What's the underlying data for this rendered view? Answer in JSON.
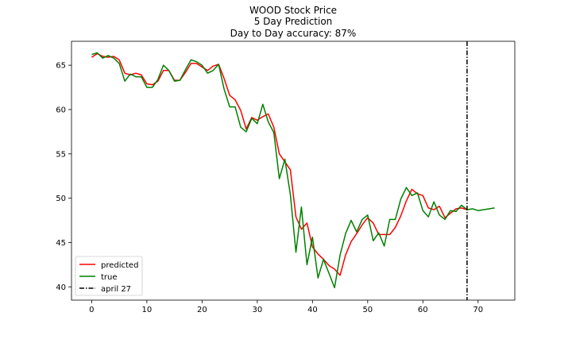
{
  "chart_data": {
    "type": "line",
    "title_lines": [
      "WOOD Stock Price",
      "5 Day Prediction",
      "Day to Day accuracy: 87%"
    ],
    "xlabel": "",
    "ylabel": "",
    "xlim": [
      -3.65,
      76.65
    ],
    "ylim": [
      38.5,
      67.7
    ],
    "xticks": [
      0,
      10,
      20,
      30,
      40,
      50,
      60,
      70
    ],
    "yticks": [
      40,
      45,
      50,
      55,
      60,
      65
    ],
    "grid": false,
    "legend_position": "lower-left",
    "series": [
      {
        "name": "predicted",
        "color": "#ff0000",
        "x": [
          0,
          1,
          2,
          3,
          4,
          5,
          6,
          7,
          8,
          9,
          10,
          11,
          12,
          13,
          14,
          15,
          16,
          17,
          18,
          19,
          20,
          21,
          22,
          23,
          24,
          25,
          26,
          27,
          28,
          29,
          30,
          31,
          32,
          33,
          34,
          35,
          36,
          37,
          38,
          39,
          40,
          41,
          42,
          43,
          44,
          45,
          46,
          47,
          48,
          49,
          50,
          51,
          52,
          53,
          54,
          55,
          56,
          57,
          58,
          59,
          60,
          61,
          62,
          63,
          64,
          65,
          66,
          67,
          68
        ],
        "y": [
          65.9,
          66.3,
          66.0,
          65.9,
          66.0,
          65.6,
          64.1,
          63.9,
          64.1,
          63.9,
          62.9,
          62.8,
          63.2,
          64.4,
          64.4,
          63.3,
          63.3,
          64.2,
          65.2,
          65.2,
          64.8,
          64.4,
          64.9,
          65.1,
          63.5,
          61.6,
          61.1,
          59.9,
          57.8,
          59.1,
          58.8,
          59.2,
          59.5,
          58.0,
          55.0,
          54.1,
          53.2,
          47.9,
          46.5,
          47.2,
          44.5,
          43.7,
          43.1,
          42.4,
          42.0,
          41.3,
          43.6,
          45.1,
          46.0,
          47.0,
          47.8,
          47.2,
          45.9,
          45.9,
          45.9,
          46.7,
          48.0,
          49.7,
          51.0,
          50.5,
          50.3,
          48.9,
          48.7,
          49.1,
          47.8,
          48.3,
          48.8,
          48.9,
          48.7
        ]
      },
      {
        "name": "true",
        "color": "#008000",
        "x": [
          0,
          1,
          2,
          3,
          4,
          5,
          6,
          7,
          8,
          9,
          10,
          11,
          12,
          13,
          14,
          15,
          16,
          17,
          18,
          19,
          20,
          21,
          22,
          23,
          24,
          25,
          26,
          27,
          28,
          29,
          30,
          31,
          32,
          33,
          34,
          35,
          36,
          37,
          38,
          39,
          40,
          41,
          42,
          43,
          44,
          45,
          46,
          47,
          48,
          49,
          50,
          51,
          52,
          53,
          54,
          55,
          56,
          57,
          58,
          59,
          60,
          61,
          62,
          63,
          64,
          65,
          66,
          67,
          68,
          69,
          70,
          71,
          72,
          73
        ],
        "y": [
          66.2,
          66.4,
          65.8,
          66.1,
          65.8,
          65.2,
          63.2,
          64.0,
          63.7,
          63.7,
          62.5,
          62.5,
          63.4,
          65.0,
          64.4,
          63.2,
          63.3,
          64.5,
          65.6,
          65.4,
          65.0,
          64.1,
          64.4,
          65.1,
          62.3,
          60.3,
          60.3,
          58.0,
          57.5,
          59.0,
          58.4,
          60.6,
          58.6,
          57.4,
          52.2,
          54.4,
          50.4,
          43.9,
          49.0,
          42.5,
          45.6,
          41.0,
          43.1,
          41.5,
          39.9,
          43.6,
          46.0,
          47.5,
          46.2,
          47.6,
          48.1,
          45.2,
          46.1,
          44.6,
          47.6,
          47.6,
          49.9,
          51.2,
          50.3,
          50.6,
          48.6,
          47.9,
          49.6,
          48.1,
          47.6,
          48.6,
          48.5,
          49.2,
          48.7,
          48.8,
          48.6,
          48.7,
          48.8,
          48.9
        ]
      }
    ],
    "vline": {
      "name": "april 27",
      "x": 68,
      "color": "#000000",
      "style": "dash-dot"
    }
  }
}
